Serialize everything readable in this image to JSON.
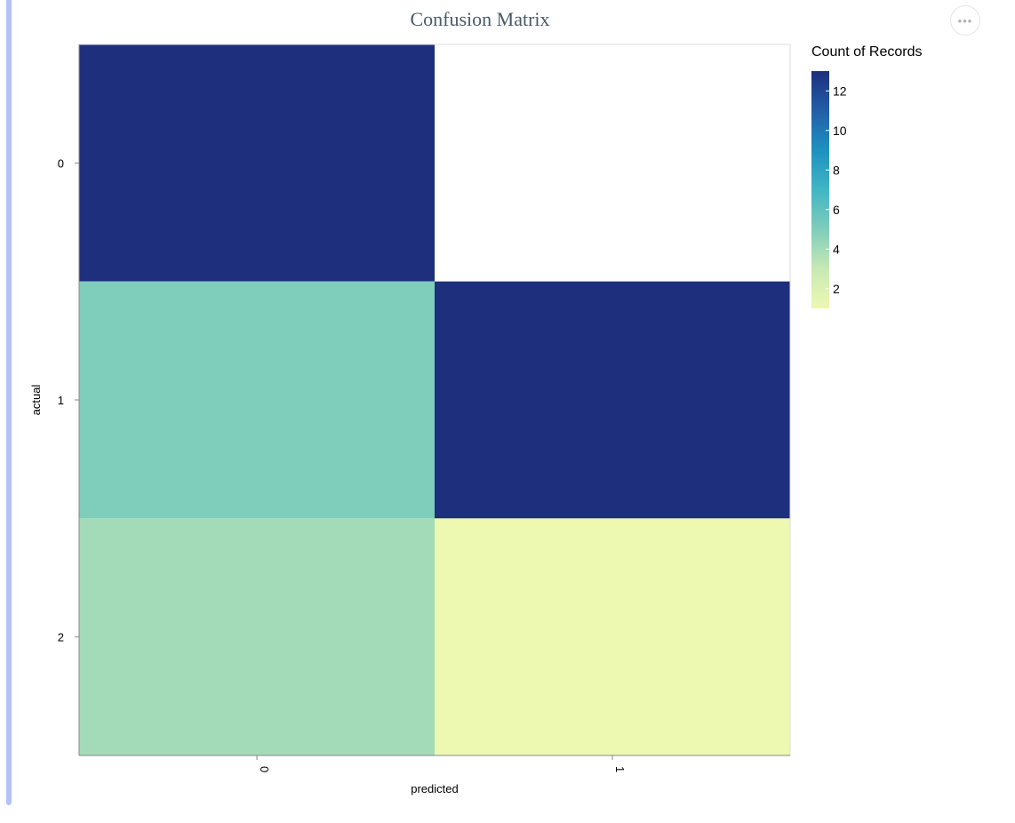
{
  "menu": {
    "label": "•••"
  },
  "chart_data": {
    "type": "heatmap",
    "title": "Confusion Matrix",
    "xlabel": "predicted",
    "ylabel": "actual",
    "x_categories": [
      "0",
      "1"
    ],
    "y_categories": [
      "0",
      "1",
      "2"
    ],
    "cells": [
      {
        "x": "0",
        "y": "0",
        "value": 13
      },
      {
        "x": "0",
        "y": "1",
        "value": 5
      },
      {
        "x": "1",
        "y": "1",
        "value": 13
      },
      {
        "x": "0",
        "y": "2",
        "value": 4
      },
      {
        "x": "1",
        "y": "2",
        "value": 1
      }
    ],
    "legend": {
      "title": "Count of Records",
      "ticks": [
        12,
        10,
        8,
        6,
        4,
        2
      ],
      "domain": [
        1,
        13
      ],
      "color_scheme": [
        "#edf8b1",
        "#c7e9b4",
        "#7fcdbb",
        "#41b6c4",
        "#1d91c0",
        "#225ea8",
        "#1e2f7d"
      ],
      "placement": "right"
    }
  }
}
